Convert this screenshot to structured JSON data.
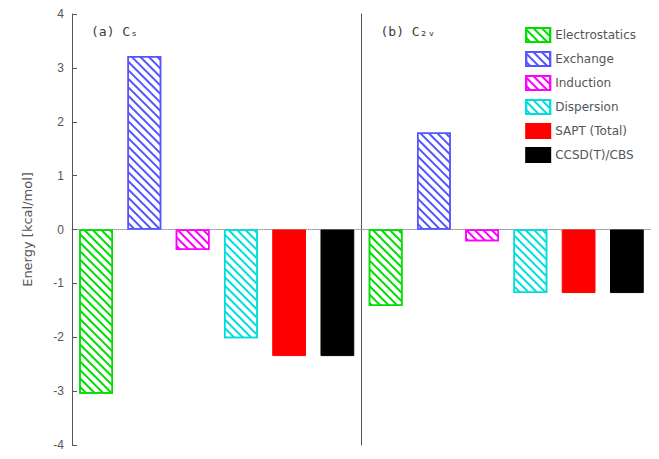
{
  "chart_data": [
    {
      "type": "bar",
      "title": "(a) Cₛ",
      "ylabel": "Energy [kcal/mol]",
      "categories": [
        "Electrostatics",
        "Exchange",
        "Induction",
        "Dispersion",
        "SAPT (Total)",
        "CCSD(T)/CBS"
      ],
      "values": [
        -3.05,
        3.22,
        -0.38,
        -2.02,
        -2.35,
        -2.35
      ],
      "colors": [
        "#00dd00",
        "#5555ff",
        "#ff00ff",
        "#00dddd",
        "#ff0000",
        "#000000"
      ],
      "ylim": [
        -4,
        4
      ],
      "yticks": [
        -4,
        -3,
        -2,
        -1,
        0,
        1,
        2,
        3,
        4
      ],
      "grid": false,
      "tick_labels": "y"
    },
    {
      "type": "bar",
      "title": "(b) C₂ᵥ",
      "categories": [
        "Electrostatics",
        "Exchange",
        "Induction",
        "Dispersion",
        "SAPT (Total)",
        "CCSD(T)/CBS"
      ],
      "values": [
        -1.42,
        1.8,
        -0.22,
        -1.18,
        -1.18,
        -1.18
      ],
      "colors": [
        "#00dd00",
        "#5555ff",
        "#ff00ff",
        "#00dddd",
        "#ff0000",
        "#000000"
      ],
      "ylim": [
        -4,
        4
      ],
      "yticks": [
        -4,
        -3,
        -2,
        -1,
        0,
        1,
        2,
        3,
        4
      ],
      "grid": false,
      "tick_labels": false,
      "legend": "upper right"
    }
  ]
}
